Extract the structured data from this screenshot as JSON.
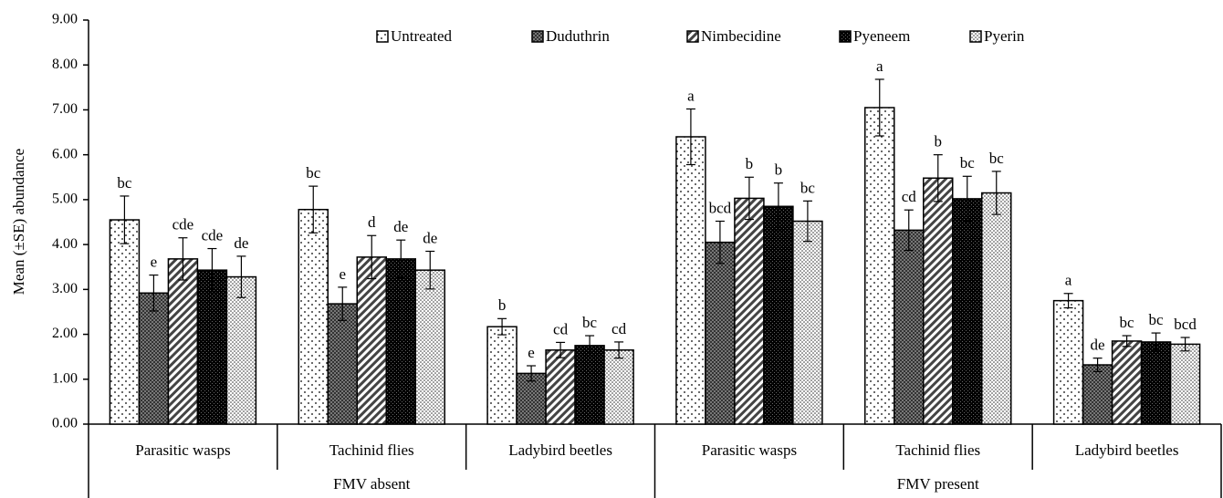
{
  "chart_data": {
    "type": "bar",
    "y_label": "Mean (±SE) abundance",
    "categories": [
      "Parasitic wasps",
      "Tachinid flies",
      "Ladybird beetles",
      "Parasitic wasps",
      "Tachinid flies",
      "Ladybird beetles"
    ],
    "category_groups": [
      "FMV absent",
      "FMV present"
    ],
    "ylim": [
      0,
      9
    ],
    "yticks": [
      {
        "value": 0,
        "label": "0.00"
      },
      {
        "value": 1,
        "label": "1.00"
      },
      {
        "value": 2,
        "label": "2.00"
      },
      {
        "value": 3,
        "label": "3.00"
      },
      {
        "value": 4,
        "label": "4.00"
      },
      {
        "value": 5,
        "label": "5.00"
      },
      {
        "value": 6,
        "label": "6.00"
      },
      {
        "value": 7,
        "label": "7.00"
      },
      {
        "value": 8,
        "label": "8.00"
      },
      {
        "value": 9,
        "label": "9.00"
      }
    ],
    "legend": "top",
    "series": [
      {
        "name": "Untreated",
        "pattern": "sparse-dots",
        "color": "#000000",
        "values": [
          4.55,
          4.78,
          2.17,
          6.4,
          7.05,
          2.75
        ],
        "errors": [
          0.53,
          0.52,
          0.18,
          0.62,
          0.63,
          0.16
        ],
        "letters": [
          "bc",
          "bc",
          "b",
          "a",
          "a",
          "a"
        ]
      },
      {
        "name": "Duduthrin",
        "pattern": "crosshatch",
        "color": "#555555",
        "values": [
          2.92,
          2.68,
          1.13,
          4.05,
          4.32,
          1.32
        ],
        "errors": [
          0.4,
          0.37,
          0.17,
          0.47,
          0.45,
          0.15
        ],
        "letters": [
          "e",
          "e",
          "e",
          "bcd",
          "cd",
          "de"
        ]
      },
      {
        "name": "Nimbecidine",
        "pattern": "diagonal",
        "color": "#000000",
        "values": [
          3.68,
          3.72,
          1.65,
          5.03,
          5.48,
          1.85
        ],
        "errors": [
          0.47,
          0.48,
          0.17,
          0.47,
          0.52,
          0.12
        ],
        "letters": [
          "cde",
          "d",
          "cd",
          "b",
          "b",
          "bc"
        ]
      },
      {
        "name": "Pyeneem",
        "pattern": "checker",
        "color": "#000000",
        "values": [
          3.43,
          3.68,
          1.75,
          4.85,
          5.02,
          1.83
        ],
        "errors": [
          0.48,
          0.42,
          0.22,
          0.52,
          0.5,
          0.2
        ],
        "letters": [
          "cde",
          "de",
          "bc",
          "b",
          "bc",
          "bc"
        ]
      },
      {
        "name": "Pyerin",
        "pattern": "dense-dots",
        "color": "#000000",
        "values": [
          3.28,
          3.43,
          1.65,
          4.52,
          5.15,
          1.78
        ],
        "errors": [
          0.46,
          0.42,
          0.18,
          0.45,
          0.48,
          0.15
        ],
        "letters": [
          "de",
          "de",
          "cd",
          "bc",
          "bc",
          "bcd"
        ]
      }
    ]
  }
}
